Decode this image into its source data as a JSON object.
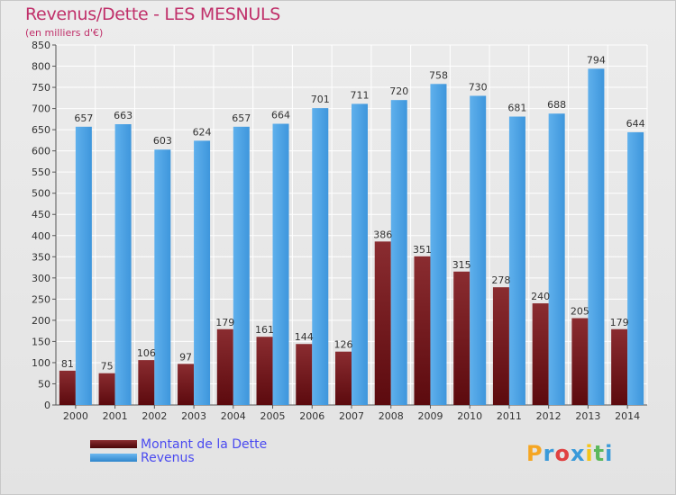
{
  "title": "Revenus/Dette - LES MESNULS",
  "subtitle": "(en milliers d'€)",
  "colors": {
    "debt": "#7a1e22",
    "revenue": "#4ea3e4",
    "grid": "#ffffff",
    "title": "#c0306a",
    "legend_text": "#4a4af0"
  },
  "legend": [
    {
      "label": "Montant de la Dette",
      "color": "#6a0f14"
    },
    {
      "label": "Revenus",
      "color": "#3f9ae0"
    }
  ],
  "logo": {
    "letters": [
      "P",
      "r",
      "o",
      "x",
      "i",
      "t",
      "i"
    ],
    "colors": [
      "#f5a623",
      "#3a9ad9",
      "#e04040",
      "#3a9ad9",
      "#f5c518",
      "#5cb85c",
      "#3a9ad9"
    ]
  },
  "chart_data": {
    "type": "bar",
    "categories": [
      "2000",
      "2001",
      "2002",
      "2003",
      "2004",
      "2005",
      "2006",
      "2007",
      "2008",
      "2009",
      "2010",
      "2011",
      "2012",
      "2013",
      "2014"
    ],
    "series": [
      {
        "name": "Montant de la Dette",
        "values": [
          81,
          75,
          106,
          97,
          179,
          161,
          144,
          126,
          386,
          351,
          315,
          278,
          240,
          205,
          179
        ]
      },
      {
        "name": "Revenus",
        "values": [
          657,
          663,
          603,
          624,
          657,
          664,
          701,
          711,
          720,
          758,
          730,
          681,
          688,
          794,
          644
        ]
      }
    ],
    "ylim": [
      0,
      850
    ],
    "yticks": [
      0,
      50,
      100,
      150,
      200,
      250,
      300,
      350,
      400,
      450,
      500,
      550,
      600,
      650,
      700,
      750,
      800,
      850
    ],
    "grid": true,
    "legend_position": "bottom-left"
  }
}
